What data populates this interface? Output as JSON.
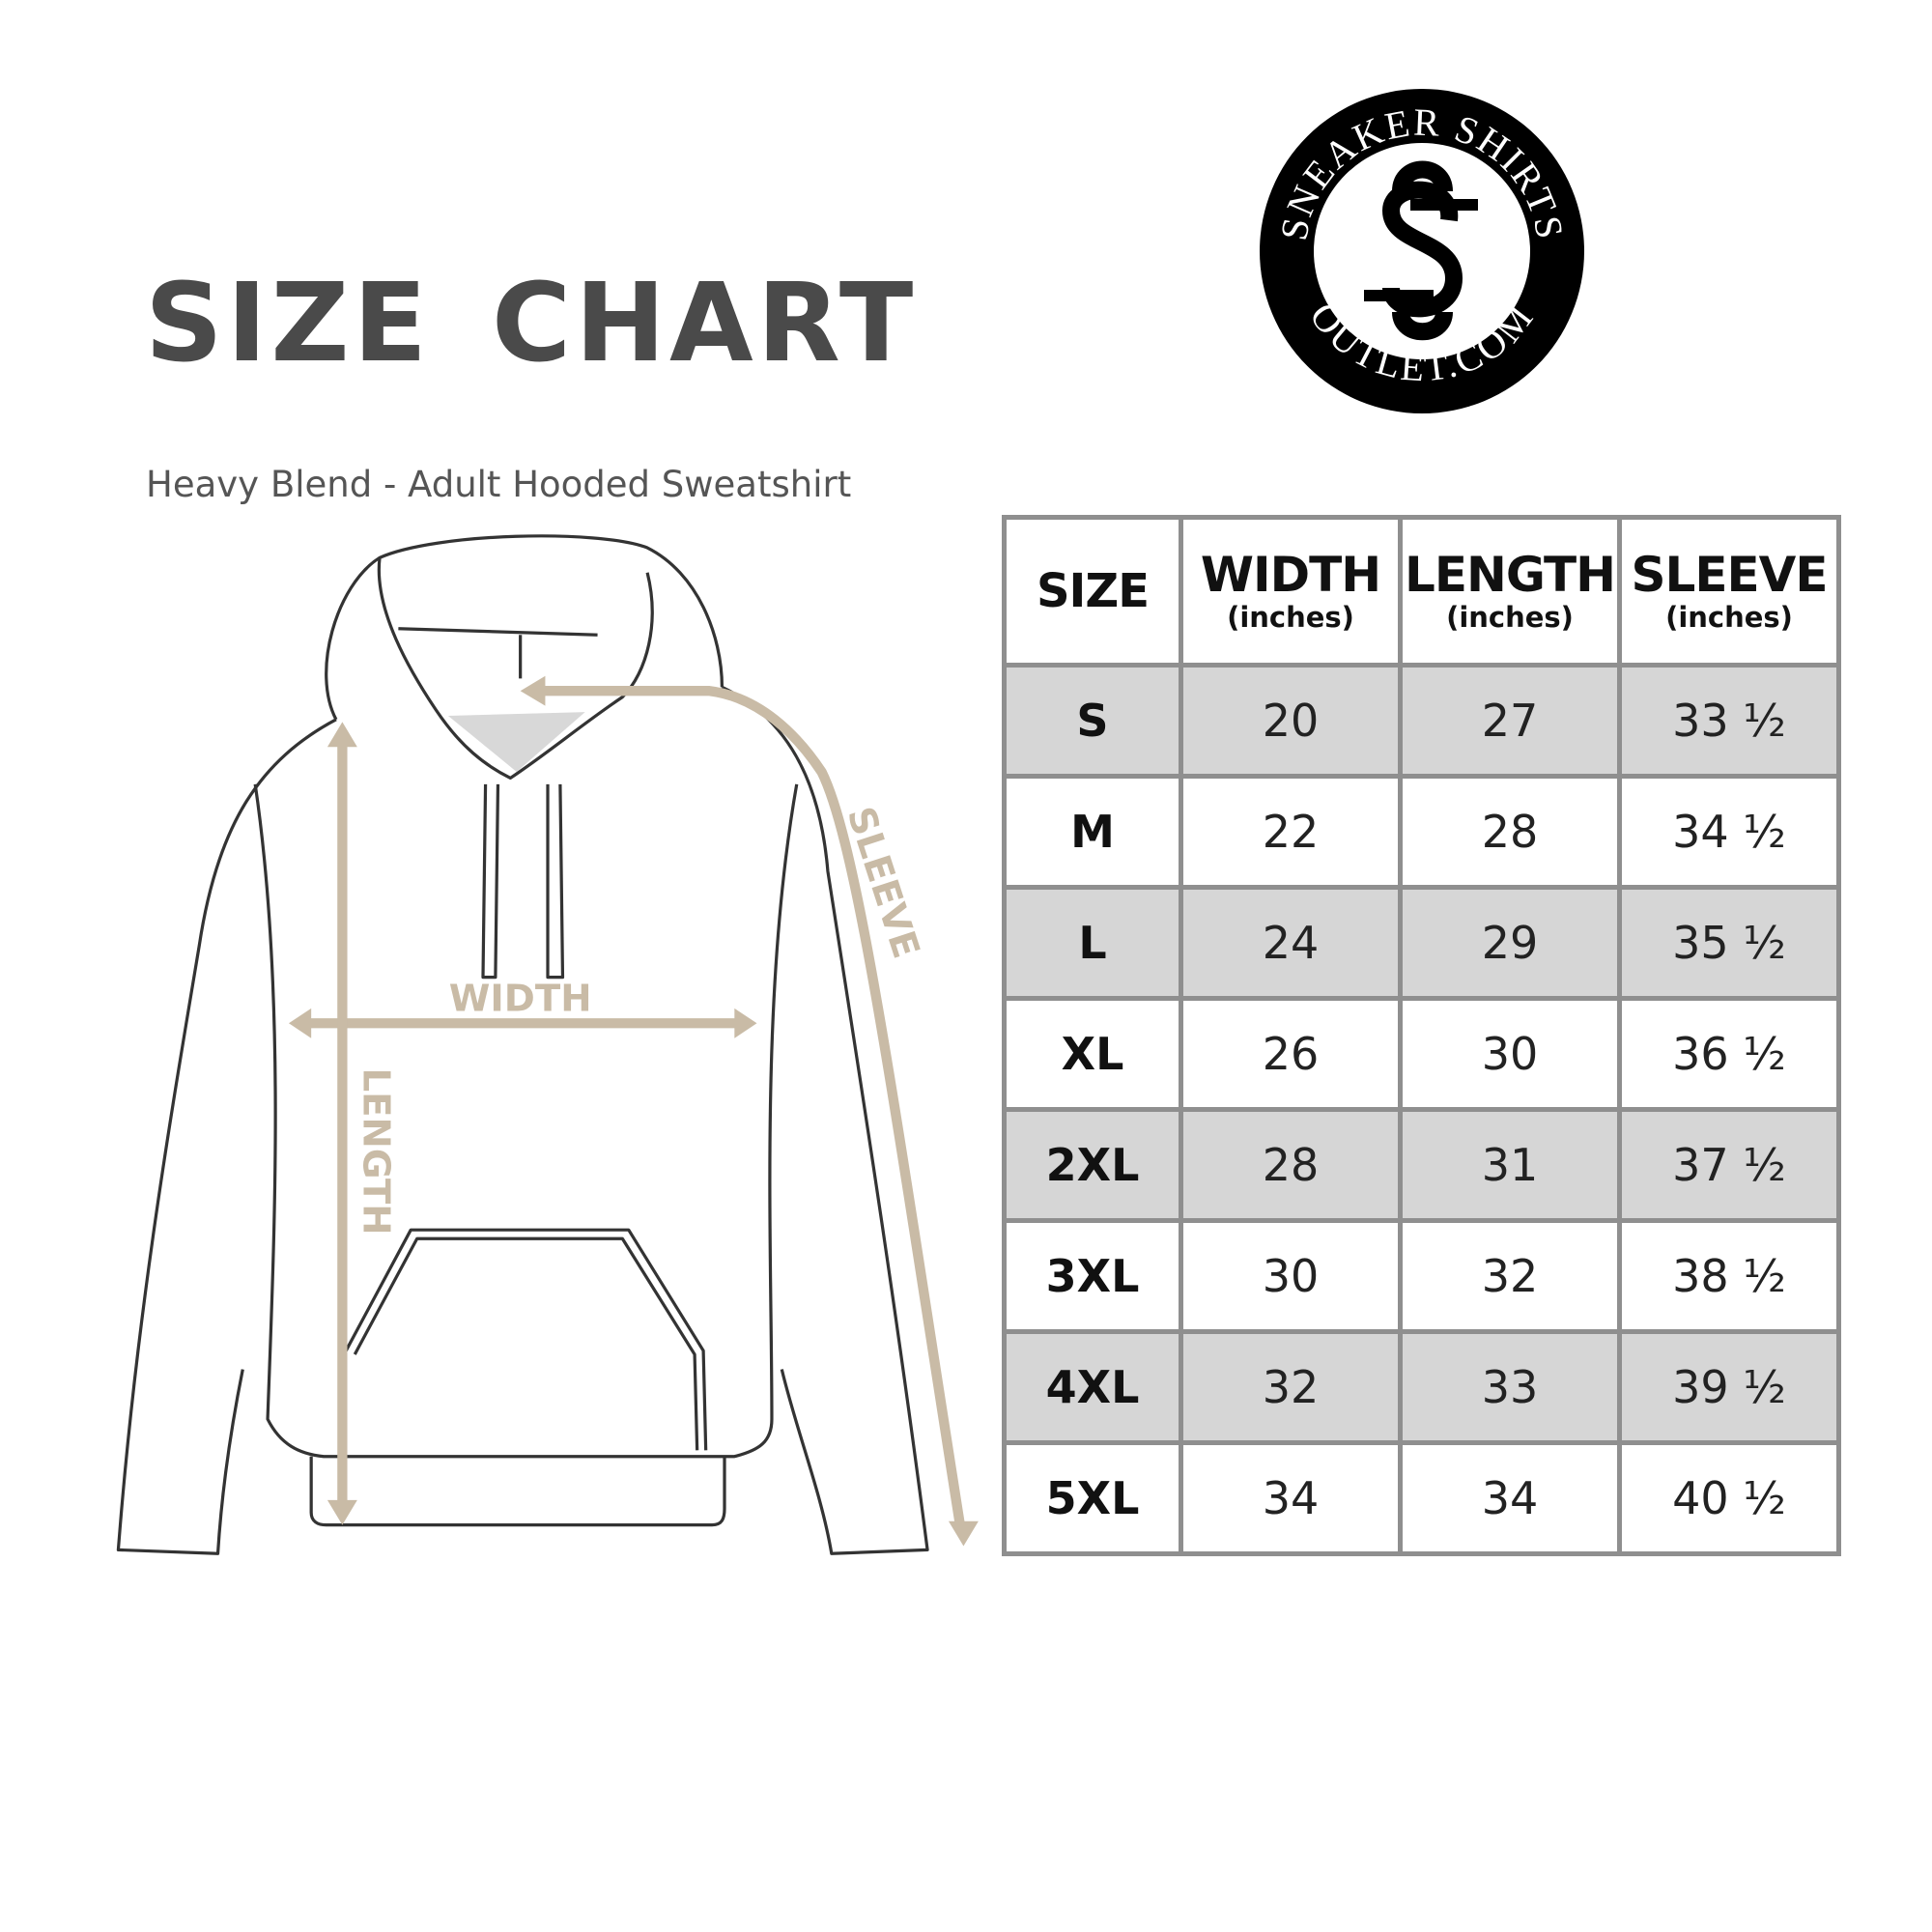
{
  "title": "SIZE CHART",
  "subtitle": "Heavy Blend - Adult Hooded Sweatshirt",
  "logo": {
    "top_text": "SNEAKER SHIRTS",
    "bottom_text": "OUTLET.COM",
    "monogram": "SS"
  },
  "diagram": {
    "width_label": "WIDTH",
    "length_label": "LENGTH",
    "sleeve_label": "SLEEVE",
    "arrow_color": "#c9bba6"
  },
  "table": {
    "headers": [
      {
        "label": "SIZE",
        "unit": ""
      },
      {
        "label": "WIDTH",
        "unit": "(inches)"
      },
      {
        "label": "LENGTH",
        "unit": "(inches)"
      },
      {
        "label": "SLEEVE",
        "unit": "(inches)"
      }
    ],
    "rows": [
      [
        "S",
        "20",
        "27",
        "33 ½"
      ],
      [
        "M",
        "22",
        "28",
        "34 ½"
      ],
      [
        "L",
        "24",
        "29",
        "35 ½"
      ],
      [
        "XL",
        "26",
        "30",
        "36 ½"
      ],
      [
        "2XL",
        "28",
        "31",
        "37 ½"
      ],
      [
        "3XL",
        "30",
        "32",
        "38 ½"
      ],
      [
        "4XL",
        "32",
        "33",
        "39 ½"
      ],
      [
        "5XL",
        "34",
        "34",
        "40 ½"
      ]
    ],
    "shade_color": "#d6d6d6",
    "border_color": "#8f8f8f"
  }
}
